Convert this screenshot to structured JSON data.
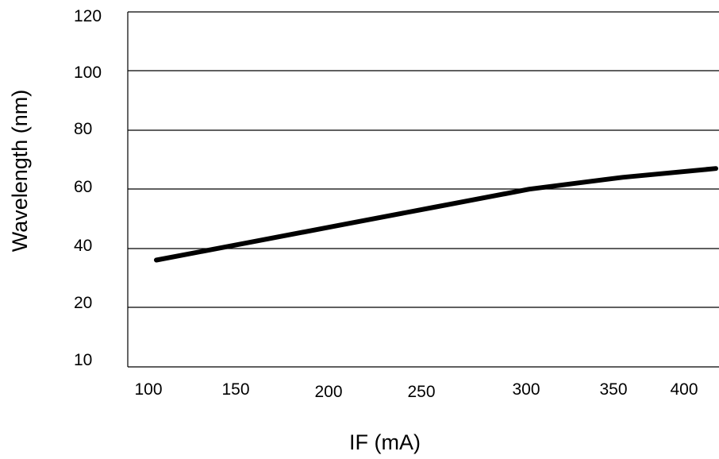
{
  "chart_data": {
    "type": "line",
    "title": "",
    "xlabel": "IF (mA)",
    "ylabel": "Wavelength (nm)",
    "xticks": [
      "100",
      "150",
      "200",
      "250",
      "300",
      "350",
      "400"
    ],
    "yticks": [
      "10",
      "20",
      "40",
      "60",
      "80",
      "100",
      "120"
    ],
    "grid": "horizontal",
    "legend": "none",
    "series": [
      {
        "color": "#000000",
        "x": [
          105,
          155,
          205,
          255,
          305,
          355,
          405
        ],
        "y": [
          36,
          42,
          48,
          54,
          60,
          64,
          67
        ]
      }
    ]
  }
}
